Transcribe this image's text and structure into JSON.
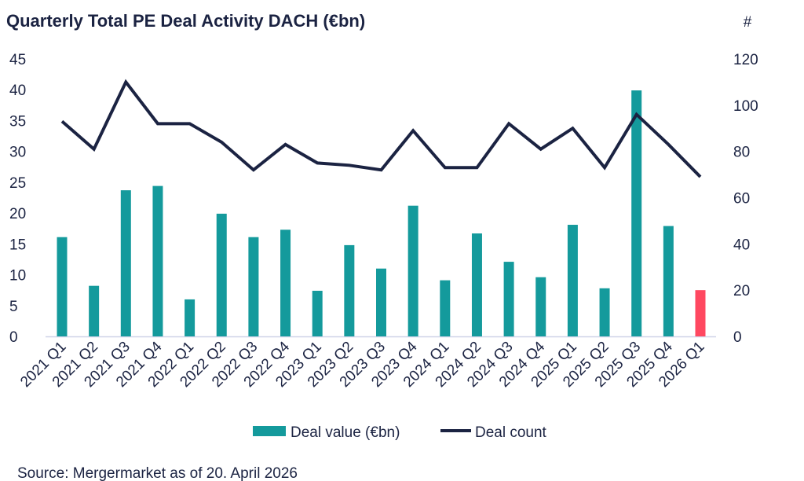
{
  "chart_data": {
    "type": "bar+line",
    "title": "Quarterly Total PE Deal Activity DACH (€bn)",
    "y2label": "#",
    "categories": [
      "2021 Q1",
      "2021 Q2",
      "2021 Q3",
      "2021 Q4",
      "2022 Q1",
      "2022 Q2",
      "2022 Q3",
      "2022 Q4",
      "2023 Q1",
      "2023 Q2",
      "2023 Q3",
      "2023 Q4",
      "2024 Q1",
      "2024 Q2",
      "2024 Q3",
      "2024 Q4",
      "2025 Q1",
      "2025 Q2",
      "2025 Q3",
      "2025 Q4",
      "2026 Q1"
    ],
    "series": [
      {
        "name": "Deal value (€bn)",
        "type": "bar",
        "axis": "left",
        "color": "#149a9c",
        "highlight_color": "#ff4860",
        "highlight_index": 20,
        "values": [
          16.1,
          8.2,
          23.7,
          24.4,
          6.0,
          19.9,
          16.1,
          17.3,
          7.4,
          14.8,
          11.0,
          21.2,
          9.1,
          16.7,
          12.1,
          9.6,
          18.1,
          7.8,
          39.9,
          17.9,
          7.5
        ]
      },
      {
        "name": "Deal count",
        "type": "line",
        "axis": "right",
        "color": "#1b2342",
        "values": [
          93,
          81,
          110,
          92,
          92,
          84,
          72,
          83,
          75,
          74,
          72,
          89,
          73,
          73,
          92,
          81,
          90,
          73,
          96,
          83,
          69
        ]
      }
    ],
    "ylim": [
      0,
      45
    ],
    "yticks": [
      0,
      5,
      10,
      15,
      20,
      25,
      30,
      35,
      40,
      45
    ],
    "y2lim": [
      0,
      120
    ],
    "y2ticks": [
      0,
      20,
      40,
      60,
      80,
      100,
      120
    ],
    "grid": false,
    "legend": "bottom"
  },
  "source": "Source: Mergermarket as of 20. April 2026"
}
